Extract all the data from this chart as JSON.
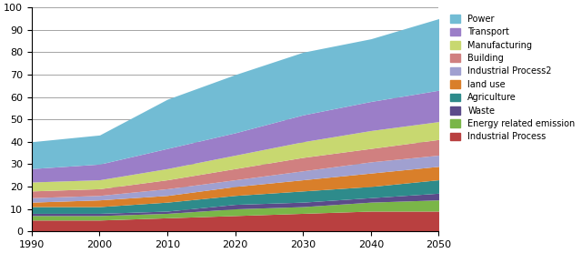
{
  "years": [
    1990,
    2000,
    2010,
    2020,
    2030,
    2040,
    2050
  ],
  "series": {
    "Industrial Process": [
      5,
      5,
      6,
      7,
      8,
      9,
      9
    ],
    "Energy related emission": [
      2,
      2,
      2,
      3,
      3,
      4,
      5
    ],
    "Waste": [
      1,
      1,
      1,
      2,
      2,
      2,
      3
    ],
    "Agriculture": [
      3,
      3,
      4,
      4,
      5,
      5,
      6
    ],
    "land use": [
      2,
      3,
      3,
      4,
      5,
      6,
      6
    ],
    "Industrial Process2": [
      2,
      2,
      3,
      3,
      4,
      5,
      5
    ],
    "Building": [
      3,
      3,
      4,
      5,
      6,
      6,
      7
    ],
    "Manufacturing": [
      4,
      4,
      5,
      6,
      7,
      8,
      8
    ],
    "Transport": [
      6,
      7,
      9,
      10,
      12,
      13,
      14
    ],
    "Power": [
      12,
      13,
      22,
      26,
      28,
      28,
      32
    ]
  },
  "colors": {
    "Industrial Process": "#b94040",
    "Energy related emission": "#7ab648",
    "Waste": "#5b4b8a",
    "Agriculture": "#2e8b8b",
    "land use": "#d97f2a",
    "Industrial Process2": "#a0a0d0",
    "Building": "#d08080",
    "Manufacturing": "#c8d870",
    "Transport": "#9b7ec8",
    "Power": "#72bcd4"
  },
  "ylim": [
    0,
    100
  ],
  "xlim": [
    1990,
    2050
  ],
  "xticks": [
    1990,
    2000,
    2010,
    2020,
    2030,
    2040,
    2050
  ],
  "yticks": [
    0,
    10,
    20,
    30,
    40,
    50,
    60,
    70,
    80,
    90,
    100
  ],
  "legend_order": [
    "Power",
    "Transport",
    "Manufacturing",
    "Building",
    "Industrial Process2",
    "land use",
    "Agriculture",
    "Waste",
    "Energy related emission",
    "Industrial Process"
  ]
}
